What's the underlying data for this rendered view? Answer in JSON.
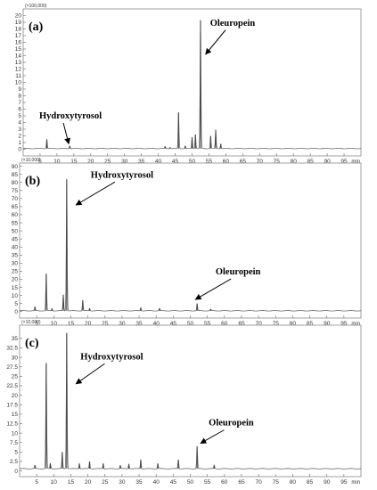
{
  "chart_data": [
    {
      "type": "line",
      "panel_label": "(a)",
      "scale_note": "(×100,000)",
      "x_unit": "min",
      "xlim": [
        0,
        100
      ],
      "ylim": [
        -1,
        21
      ],
      "y_ticks": [
        0,
        1,
        2,
        3,
        4,
        5,
        6,
        7,
        8,
        9,
        10,
        11,
        12,
        13,
        14,
        15,
        16,
        17,
        18,
        19,
        20
      ],
      "x_ticks": [
        5,
        10,
        15,
        20,
        25,
        30,
        35,
        40,
        45,
        50,
        55,
        60,
        65,
        70,
        75,
        80,
        85,
        90,
        95
      ],
      "baseline": 0.1,
      "peaks": [
        {
          "x": 7.0,
          "y": 1.5
        },
        {
          "x": 13.8,
          "y": 0.5
        },
        {
          "x": 42.0,
          "y": 0.4
        },
        {
          "x": 43.5,
          "y": 0.3
        },
        {
          "x": 46.0,
          "y": 5.5
        },
        {
          "x": 48.0,
          "y": 0.5
        },
        {
          "x": 50.0,
          "y": 1.8
        },
        {
          "x": 51.0,
          "y": 2.2
        },
        {
          "x": 52.5,
          "y": 19.3
        },
        {
          "x": 55.5,
          "y": 2.0
        },
        {
          "x": 57.0,
          "y": 2.9
        },
        {
          "x": 58.5,
          "y": 0.8
        }
      ],
      "annotations": [
        {
          "text": "Hydroxytyrosol",
          "tx": 14,
          "ty": 4.6,
          "ax": 13.5,
          "ay": 0.8
        },
        {
          "text": "Oleuropein",
          "tx": 62,
          "ty": 18.5,
          "ax": 54,
          "ay": 14.2
        }
      ]
    },
    {
      "type": "line",
      "panel_label": "(b)",
      "scale_note": "(×10,000)",
      "x_unit": "min",
      "xlim": [
        0,
        100
      ],
      "ylim": [
        -4,
        92
      ],
      "y_ticks": [
        0,
        5,
        10,
        15,
        20,
        25,
        30,
        35,
        40,
        45,
        50,
        55,
        60,
        65,
        70,
        75,
        80,
        85,
        90
      ],
      "x_ticks": [
        5,
        10,
        15,
        20,
        25,
        30,
        35,
        40,
        45,
        50,
        55,
        60,
        65,
        70,
        75,
        80,
        85,
        90,
        95
      ],
      "baseline": 0.5,
      "peaks": [
        {
          "x": 4.5,
          "y": 3.0
        },
        {
          "x": 7.8,
          "y": 23.5
        },
        {
          "x": 9.5,
          "y": 2.0
        },
        {
          "x": 12.8,
          "y": 10.5
        },
        {
          "x": 13.8,
          "y": 82.0
        },
        {
          "x": 18.5,
          "y": 7.0
        },
        {
          "x": 20.5,
          "y": 2.0
        },
        {
          "x": 35.5,
          "y": 2.5
        },
        {
          "x": 41.0,
          "y": 2.0
        },
        {
          "x": 52.0,
          "y": 5.0
        },
        {
          "x": 56.0,
          "y": 1.5
        }
      ],
      "annotations": [
        {
          "text": "Hydroxytyrosol",
          "tx": 30,
          "ty": 83,
          "ax": 16.5,
          "ay": 66
        },
        {
          "text": "Oleuropein",
          "tx": 64,
          "ty": 23,
          "ax": 51.5,
          "ay": 7.5
        }
      ]
    },
    {
      "type": "line",
      "panel_label": "(c)",
      "scale_note": "(×10,000)",
      "x_unit": "min",
      "xlim": [
        0,
        100
      ],
      "ylim": [
        -1.5,
        38.5
      ],
      "y_ticks": [
        0,
        2.5,
        5,
        7.5,
        10,
        12.5,
        15,
        17.5,
        20,
        22.5,
        25,
        27.5,
        30,
        32.5,
        35
      ],
      "y_tick_labels": [
        "0",
        "2.5",
        "5",
        "7.5",
        "10",
        "12.5",
        "15",
        "17.5",
        "20",
        "22.5",
        "25",
        "27.5",
        "30",
        "32.5",
        "35"
      ],
      "x_ticks": [
        5,
        10,
        15,
        20,
        25,
        30,
        35,
        40,
        45,
        50,
        55,
        60,
        65,
        70,
        75,
        80,
        85,
        90,
        95
      ],
      "baseline": 0.6,
      "peaks": [
        {
          "x": 4.5,
          "y": 1.5
        },
        {
          "x": 7.8,
          "y": 28.5
        },
        {
          "x": 9.0,
          "y": 2.0
        },
        {
          "x": 12.5,
          "y": 5.0
        },
        {
          "x": 13.8,
          "y": 36.5
        },
        {
          "x": 17.5,
          "y": 2.0
        },
        {
          "x": 20.5,
          "y": 2.5
        },
        {
          "x": 24.5,
          "y": 2.0
        },
        {
          "x": 29.5,
          "y": 1.5
        },
        {
          "x": 32.0,
          "y": 1.8
        },
        {
          "x": 35.5,
          "y": 3.0
        },
        {
          "x": 40.5,
          "y": 2.0
        },
        {
          "x": 46.5,
          "y": 3.0
        },
        {
          "x": 52.0,
          "y": 6.5
        },
        {
          "x": 57.0,
          "y": 1.5
        }
      ],
      "annotations": [
        {
          "text": "Hydroxytyrosol",
          "tx": 27,
          "ty": 29.5,
          "ax": 16.5,
          "ay": 23
        },
        {
          "text": "Oleuropein",
          "tx": 62,
          "ty": 12,
          "ax": 53,
          "ay": 7.3
        }
      ]
    }
  ]
}
